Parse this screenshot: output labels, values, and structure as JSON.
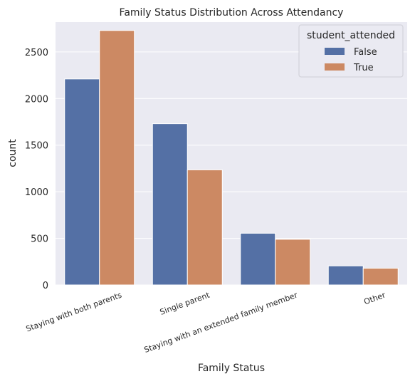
{
  "chart_data": {
    "type": "bar",
    "title": "Family Status Distribution Across Attendancy",
    "xlabel": "Family Status",
    "ylabel": "count",
    "categories": [
      "Staying with both parents",
      "Single parent",
      "Staying with an extended family member",
      "Other"
    ],
    "series": [
      {
        "name": "False",
        "values": [
          2210,
          1730,
          555,
          205
        ],
        "color": "#5470a5"
      },
      {
        "name": "True",
        "values": [
          2730,
          1235,
          490,
          180
        ],
        "color": "#cc8963"
      }
    ],
    "ylim": [
      0,
      2820
    ],
    "yticks": [
      0,
      500,
      1000,
      1500,
      2000,
      2500
    ],
    "legend": {
      "title": "student_attended",
      "position": "top-right"
    },
    "grid": true,
    "background": "#eaeaf2"
  }
}
